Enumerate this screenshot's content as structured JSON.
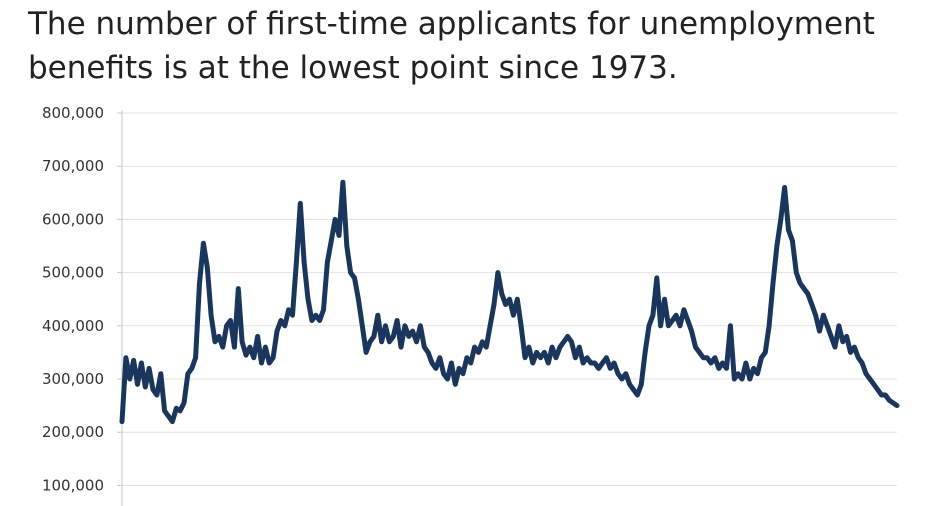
{
  "title": "The number of first-time applicants for unemployment benefits is at the lowest point since 1973.",
  "chart_data": {
    "type": "line",
    "title": "The number of first-time applicants for unemployment benefits is at the lowest point since 1973.",
    "xlabel": "",
    "ylabel": "",
    "ylim": [
      100000,
      800000
    ],
    "y_ticks": [
      {
        "value": 800000,
        "label": "800,000"
      },
      {
        "value": 700000,
        "label": "700,000"
      },
      {
        "value": 600000,
        "label": "600,000"
      },
      {
        "value": 500000,
        "label": "500,000"
      },
      {
        "value": 400000,
        "label": "400,000"
      },
      {
        "value": 300000,
        "label": "300,000"
      },
      {
        "value": 200000,
        "label": "200,000"
      },
      {
        "value": 100000,
        "label": "100,000"
      }
    ],
    "grid": true,
    "line_color": "#1b365d",
    "series": [
      {
        "x": [
          0,
          0.5,
          1,
          1.5,
          2,
          2.5,
          3,
          3.5,
          4,
          4.5,
          5,
          5.5,
          6,
          6.5,
          7,
          7.5,
          8,
          8.5,
          9,
          9.5,
          10,
          10.5,
          11,
          11.5,
          12,
          12.5,
          13,
          13.5,
          14,
          14.5,
          15,
          15.5,
          16,
          16.5,
          17,
          17.5,
          18,
          18.5,
          19,
          19.5,
          20,
          20.5,
          21,
          21.5,
          22,
          22.5,
          23,
          23.5,
          24,
          24.5,
          25,
          25.5,
          26,
          26.5,
          27,
          27.5,
          28,
          28.5,
          29,
          29.5,
          30,
          30.5,
          31,
          31.5,
          32,
          32.5,
          33,
          33.5,
          34,
          34.5,
          35,
          35.5,
          36,
          36.5,
          37,
          37.5,
          38,
          38.5,
          39,
          39.5,
          40,
          40.5,
          41,
          41.5,
          42,
          42.5,
          43,
          43.5,
          44,
          44.5,
          45,
          45.5,
          46,
          46.5,
          47,
          47.5,
          48,
          48.5,
          49,
          49.5,
          50,
          50.5,
          51,
          51.5,
          52,
          52.5,
          53,
          53.5,
          54,
          54.5,
          55,
          55.5,
          56,
          56.5,
          57,
          57.5,
          58,
          58.5,
          59,
          59.5,
          60,
          60.5,
          61,
          61.5,
          62,
          62.5,
          63,
          63.5,
          64,
          64.5,
          65,
          65.5,
          66,
          66.5,
          67,
          67.5,
          68,
          68.5,
          69,
          69.5,
          70,
          70.5,
          71,
          71.5,
          72,
          72.5,
          73,
          73.5,
          74,
          74.5,
          75,
          75.5,
          76,
          76.5,
          77,
          77.5,
          78,
          78.5,
          79,
          79.5,
          80,
          80.5,
          81,
          81.5,
          82,
          82.5,
          83,
          83.5,
          84,
          84.5,
          85,
          85.5,
          86,
          86.5,
          87,
          87.5,
          88,
          88.5,
          89,
          89.5,
          90,
          90.5,
          91,
          91.5,
          92,
          92.5,
          93,
          93.5,
          94,
          94.5,
          95,
          95.5,
          96,
          96.5,
          97,
          97.5,
          98,
          98.5,
          99,
          99.5,
          100
        ],
        "values": [
          220000,
          340000,
          300000,
          335000,
          290000,
          330000,
          285000,
          320000,
          280000,
          270000,
          310000,
          240000,
          230000,
          220000,
          245000,
          240000,
          255000,
          310000,
          320000,
          340000,
          480000,
          555000,
          510000,
          420000,
          370000,
          380000,
          360000,
          400000,
          410000,
          360000,
          470000,
          370000,
          345000,
          360000,
          340000,
          380000,
          330000,
          360000,
          330000,
          340000,
          390000,
          410000,
          400000,
          430000,
          420000,
          520000,
          630000,
          520000,
          450000,
          410000,
          420000,
          410000,
          430000,
          520000,
          560000,
          600000,
          570000,
          670000,
          550000,
          500000,
          490000,
          450000,
          400000,
          350000,
          370000,
          380000,
          420000,
          370000,
          400000,
          370000,
          380000,
          410000,
          360000,
          400000,
          380000,
          390000,
          370000,
          400000,
          360000,
          350000,
          330000,
          320000,
          340000,
          310000,
          300000,
          330000,
          290000,
          320000,
          310000,
          340000,
          330000,
          360000,
          350000,
          370000,
          360000,
          400000,
          440000,
          500000,
          460000,
          440000,
          450000,
          420000,
          450000,
          400000,
          340000,
          360000,
          330000,
          350000,
          340000,
          350000,
          330000,
          360000,
          340000,
          360000,
          370000,
          380000,
          370000,
          340000,
          360000,
          330000,
          340000,
          330000,
          330000,
          320000,
          330000,
          340000,
          320000,
          330000,
          310000,
          300000,
          310000,
          290000,
          280000,
          270000,
          290000,
          350000,
          400000,
          420000,
          490000,
          400000,
          450000,
          400000,
          410000,
          420000,
          400000,
          430000,
          410000,
          390000,
          360000,
          350000,
          340000,
          340000,
          330000,
          340000,
          320000,
          330000,
          320000,
          400000,
          300000,
          310000,
          300000,
          330000,
          300000,
          320000,
          310000,
          340000,
          350000,
          400000,
          480000,
          550000,
          600000,
          660000,
          580000,
          560000,
          500000,
          480000,
          470000,
          460000,
          440000,
          420000,
          390000,
          420000,
          400000,
          380000,
          360000,
          400000,
          370000,
          380000,
          350000,
          360000,
          340000,
          330000,
          310000,
          300000,
          290000,
          280000,
          270000,
          270000,
          260000,
          255000,
          250000
        ]
      }
    ]
  }
}
